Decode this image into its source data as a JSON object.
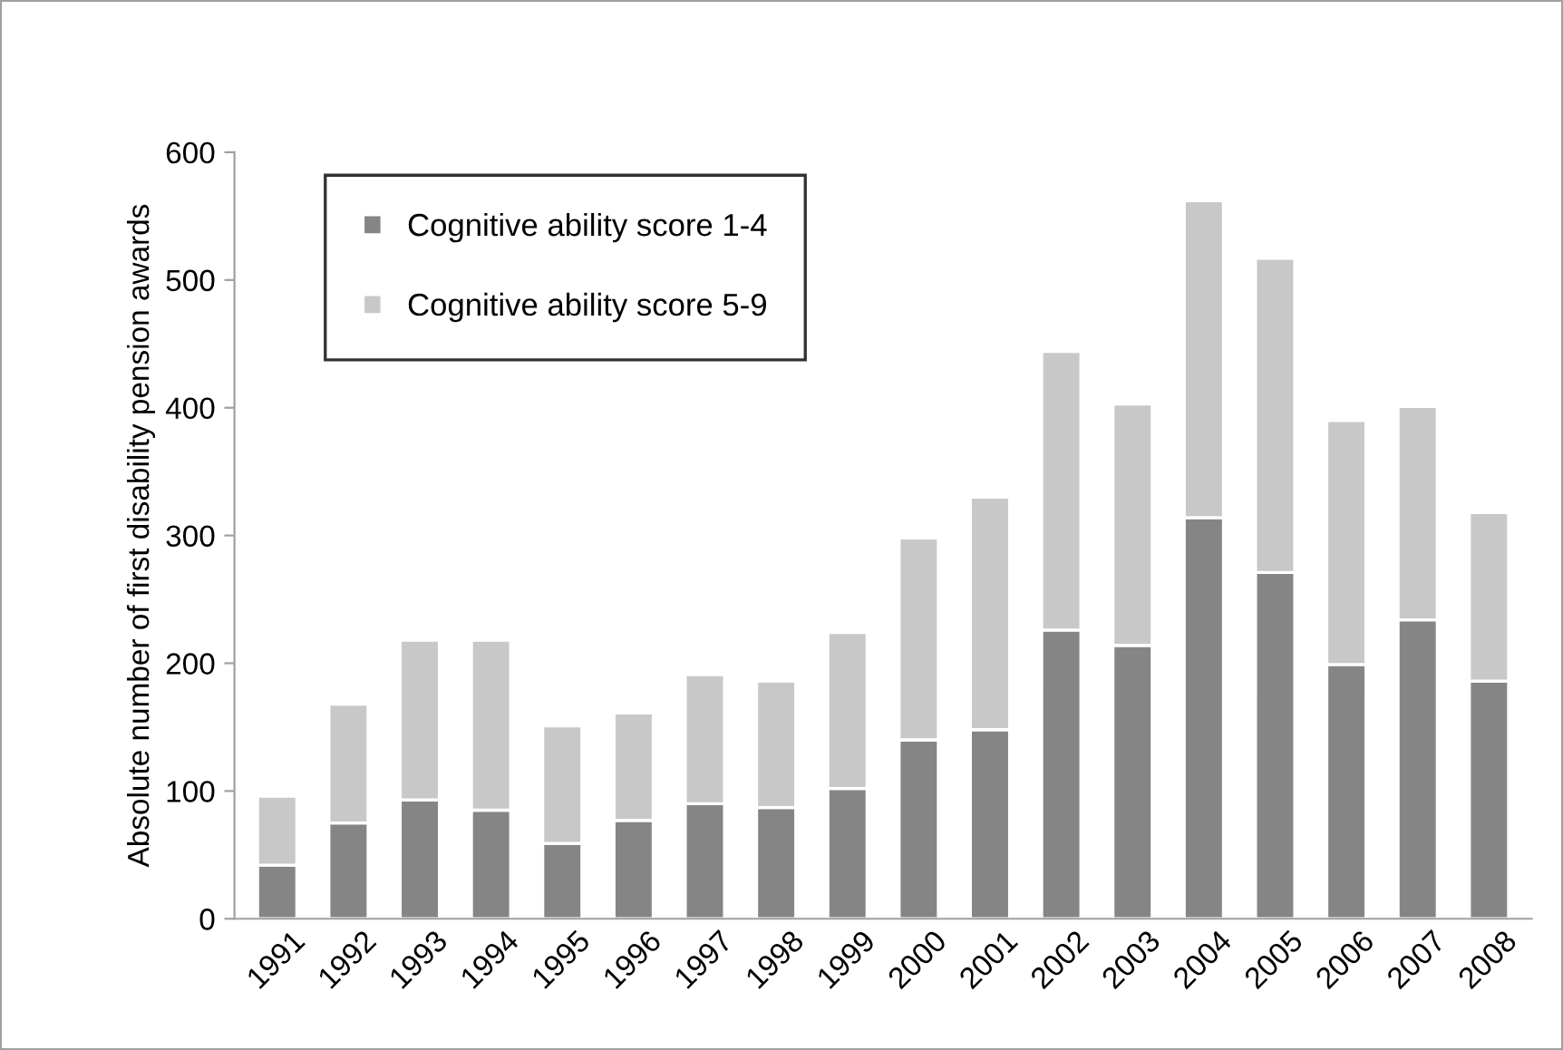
{
  "chart_data": {
    "type": "bar",
    "stacked": true,
    "ylabel": "Absolute number of first disability pension awards",
    "categories": [
      "1991",
      "1992",
      "1993",
      "1994",
      "1995",
      "1996",
      "1997",
      "1998",
      "1999",
      "2000",
      "2001",
      "2002",
      "2003",
      "2004",
      "2005",
      "2006",
      "2007",
      "2008"
    ],
    "series": [
      {
        "name": "Cognitive ability score 1-4",
        "color": "#858585",
        "values": [
          42,
          75,
          93,
          85,
          59,
          77,
          90,
          87,
          102,
          140,
          148,
          226,
          214,
          314,
          271,
          199,
          234,
          186
        ]
      },
      {
        "name": "Cognitive ability score 5-9",
        "color": "#c8c8c8",
        "values": [
          54,
          93,
          125,
          133,
          92,
          84,
          101,
          99,
          122,
          158,
          182,
          218,
          189,
          248,
          246,
          191,
          167,
          132
        ]
      }
    ],
    "ylim": [
      0,
      600
    ],
    "yticks": [
      0,
      100,
      200,
      300,
      400,
      500,
      600
    ],
    "grid": false,
    "legend": "top left"
  }
}
